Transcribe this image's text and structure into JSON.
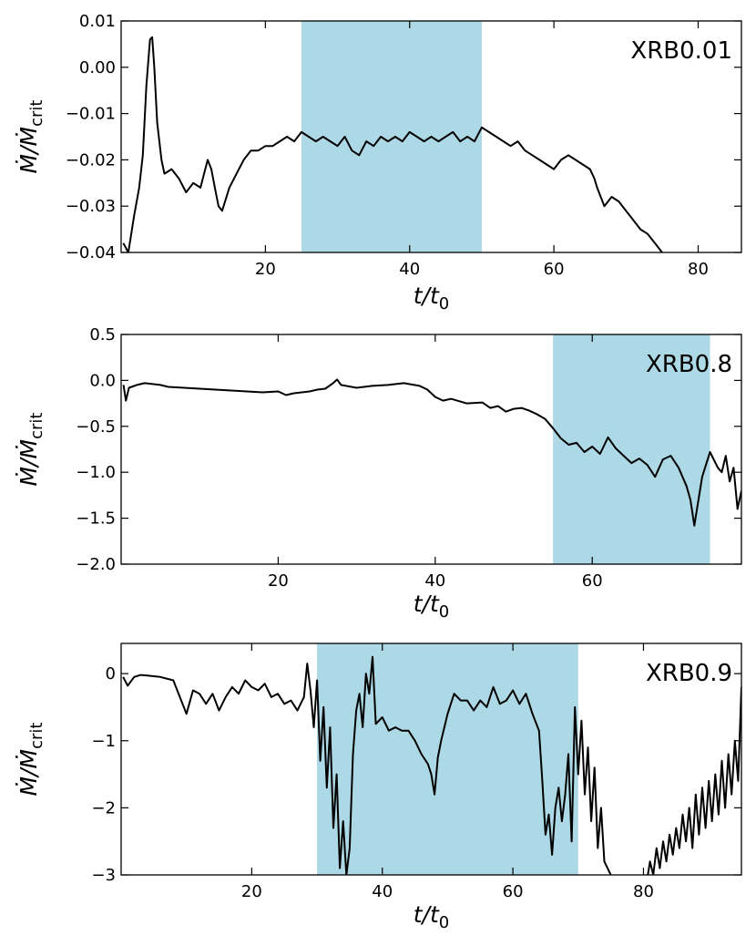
{
  "chart_data": [
    {
      "type": "line",
      "panel_label": "XRB0.01",
      "xlabel": "t/t_0",
      "ylabel": "Ṁ/Ṁ_crit",
      "xlim": [
        0,
        86
      ],
      "ylim": [
        -0.04,
        0.01
      ],
      "xticks": [
        20,
        40,
        60,
        80
      ],
      "xtick_labels": [
        "20",
        "40",
        "60",
        "80"
      ],
      "yticks": [
        -0.04,
        -0.03,
        -0.02,
        -0.01,
        0.0,
        0.01
      ],
      "ytick_labels": [
        "−0.04",
        "−0.03",
        "−0.02",
        "−0.01",
        "0.00",
        "0.01"
      ],
      "highlight": [
        25,
        50
      ],
      "highlight_color": "#add8e6",
      "line_color": "#000000",
      "series": [
        {
          "x": [
            0.3,
            1,
            1.8,
            2.5,
            3,
            3.5,
            4,
            4.3,
            4.6,
            5,
            5.6,
            6,
            7,
            8,
            9,
            10,
            11,
            12,
            12.5,
            13,
            13.5,
            14,
            15,
            16,
            17,
            18,
            19,
            20,
            21,
            22,
            23,
            24,
            25,
            26,
            27,
            28,
            29,
            30,
            31,
            32,
            33,
            34,
            35,
            36,
            37,
            38,
            39,
            40,
            41,
            42,
            43,
            44,
            45,
            46,
            47,
            48,
            49,
            50,
            51,
            52,
            53,
            54,
            55,
            56,
            57,
            58,
            59,
            60,
            61,
            62,
            63,
            64,
            65,
            65.6,
            66,
            67,
            68,
            69,
            70,
            71,
            72,
            73,
            74,
            75
          ],
          "y": [
            -0.038,
            -0.04,
            -0.032,
            -0.026,
            -0.019,
            -0.004,
            0.006,
            0.0065,
            0.0,
            -0.012,
            -0.02,
            -0.023,
            -0.022,
            -0.024,
            -0.027,
            -0.025,
            -0.026,
            -0.02,
            -0.022,
            -0.026,
            -0.03,
            -0.031,
            -0.026,
            -0.023,
            -0.02,
            -0.018,
            -0.018,
            -0.017,
            -0.017,
            -0.016,
            -0.015,
            -0.016,
            -0.014,
            -0.015,
            -0.016,
            -0.015,
            -0.016,
            -0.017,
            -0.015,
            -0.018,
            -0.019,
            -0.016,
            -0.017,
            -0.015,
            -0.016,
            -0.015,
            -0.016,
            -0.014,
            -0.015,
            -0.016,
            -0.015,
            -0.016,
            -0.015,
            -0.014,
            -0.016,
            -0.015,
            -0.016,
            -0.013,
            -0.014,
            -0.015,
            -0.016,
            -0.017,
            -0.016,
            -0.018,
            -0.019,
            -0.02,
            -0.021,
            -0.022,
            -0.02,
            -0.019,
            -0.02,
            -0.021,
            -0.022,
            -0.024,
            -0.026,
            -0.03,
            -0.028,
            -0.029,
            -0.031,
            -0.033,
            -0.035,
            -0.036,
            -0.038,
            -0.04
          ]
        }
      ]
    },
    {
      "type": "line",
      "panel_label": "XRB0.8",
      "xlabel": "t/t_0",
      "ylabel": "Ṁ/Ṁ_crit",
      "xlim": [
        0,
        79
      ],
      "ylim": [
        -2.0,
        0.5
      ],
      "xticks": [
        20,
        40,
        60
      ],
      "xtick_labels": [
        "20",
        "40",
        "60"
      ],
      "yticks": [
        -2.0,
        -1.5,
        -1.0,
        -0.5,
        0.0,
        0.5
      ],
      "ytick_labels": [
        "−2.0",
        "−1.5",
        "−1.0",
        "−0.5",
        "0.0",
        "0.5"
      ],
      "highlight": [
        55,
        75
      ],
      "highlight_color": "#add8e6",
      "line_color": "#000000",
      "series": [
        {
          "x": [
            0.3,
            0.6,
            1,
            2,
            3,
            4,
            5,
            6,
            8,
            10,
            12,
            14,
            16,
            18,
            20,
            21,
            22,
            24,
            25,
            26,
            27,
            27.5,
            28,
            30,
            32,
            34,
            36,
            38,
            39,
            40,
            41,
            42,
            44,
            46,
            47,
            48,
            49,
            50,
            51,
            52,
            53,
            54,
            55,
            56,
            57,
            58,
            59,
            60,
            61,
            62,
            63,
            64,
            65,
            66,
            67,
            68,
            69,
            70,
            71,
            72,
            72.5,
            73,
            74,
            75,
            76,
            76.5,
            77,
            77.5,
            78,
            78.5,
            79
          ],
          "y": [
            -0.05,
            -0.22,
            -0.08,
            -0.05,
            -0.03,
            -0.04,
            -0.05,
            -0.07,
            -0.08,
            -0.09,
            -0.1,
            -0.11,
            -0.12,
            -0.13,
            -0.12,
            -0.16,
            -0.14,
            -0.12,
            -0.1,
            -0.09,
            -0.03,
            0.01,
            -0.05,
            -0.08,
            -0.06,
            -0.05,
            -0.03,
            -0.06,
            -0.1,
            -0.18,
            -0.22,
            -0.2,
            -0.25,
            -0.24,
            -0.3,
            -0.28,
            -0.34,
            -0.31,
            -0.3,
            -0.33,
            -0.37,
            -0.42,
            -0.52,
            -0.63,
            -0.7,
            -0.68,
            -0.78,
            -0.72,
            -0.8,
            -0.62,
            -0.74,
            -0.82,
            -0.9,
            -0.85,
            -0.92,
            -1.05,
            -0.86,
            -0.82,
            -0.95,
            -1.15,
            -1.3,
            -1.58,
            -1.05,
            -0.78,
            -0.95,
            -1.0,
            -0.82,
            -1.1,
            -0.95,
            -1.4,
            -1.2
          ]
        }
      ]
    },
    {
      "type": "line",
      "panel_label": "XRB0.9",
      "xlabel": "t/t_0",
      "ylabel": "Ṁ/Ṁ_crit",
      "xlim": [
        0,
        95
      ],
      "ylim": [
        -3,
        0.45
      ],
      "xticks": [
        20,
        40,
        60,
        80
      ],
      "xtick_labels": [
        "20",
        "40",
        "60",
        "80"
      ],
      "yticks": [
        -3,
        -2,
        -1,
        0
      ],
      "ytick_labels": [
        "−3",
        "−2",
        "−1",
        "0"
      ],
      "highlight": [
        30,
        70
      ],
      "highlight_color": "#add8e6",
      "line_color": "#000000",
      "series": [
        {
          "x": [
            0.3,
            1,
            2,
            3,
            4,
            6,
            8,
            9,
            10,
            11,
            12,
            13,
            14,
            15,
            16,
            17,
            18,
            19,
            20,
            21,
            22,
            23,
            24,
            25,
            26,
            27,
            28,
            28.5,
            29,
            29.5,
            30,
            30.5,
            31,
            31.5,
            32,
            32.5,
            33,
            33.5,
            34,
            34.5,
            35,
            35.5,
            36,
            36.5,
            37,
            37.5,
            38,
            38.5,
            39,
            40,
            41,
            42,
            43,
            44,
            45,
            46,
            47,
            47.5,
            48,
            48.5,
            49,
            50,
            51,
            52,
            53,
            54,
            55,
            56,
            57,
            58,
            59,
            60,
            61,
            62,
            63,
            64,
            64.5,
            65,
            65.5,
            66,
            66.5,
            67,
            67.5,
            68,
            68.5,
            69,
            69.5,
            70,
            70.5,
            71,
            71.5,
            72,
            72.5,
            73,
            73.5,
            74,
            75,
            80,
            80.5,
            81,
            81.5,
            82,
            82.5,
            83,
            83.5,
            84,
            84.5,
            85,
            85.5,
            86,
            86.5,
            87,
            87.5,
            88,
            88.5,
            89,
            89.5,
            90,
            90.5,
            91,
            91.5,
            92,
            92.5,
            93,
            93.5,
            94,
            94.5,
            95
          ],
          "y": [
            -0.05,
            -0.18,
            -0.05,
            -0.02,
            -0.03,
            -0.05,
            -0.1,
            -0.35,
            -0.6,
            -0.25,
            -0.3,
            -0.45,
            -0.3,
            -0.55,
            -0.35,
            -0.2,
            -0.3,
            -0.1,
            -0.2,
            -0.25,
            -0.15,
            -0.35,
            -0.3,
            -0.45,
            -0.4,
            -0.55,
            -0.35,
            0.15,
            -0.25,
            -0.8,
            -0.1,
            -1.3,
            -0.5,
            -1.7,
            -0.8,
            -2.3,
            -1.5,
            -2.9,
            -2.2,
            -3.0,
            -2.6,
            -1.2,
            -0.55,
            -0.3,
            -0.8,
            0.0,
            -0.3,
            0.25,
            -0.75,
            -0.65,
            -0.85,
            -0.8,
            -0.85,
            -0.85,
            -1.0,
            -1.2,
            -1.35,
            -1.5,
            -1.8,
            -1.25,
            -1.0,
            -0.6,
            -0.3,
            -0.4,
            -0.4,
            -0.55,
            -0.4,
            -0.5,
            -0.2,
            -0.45,
            -0.4,
            -0.25,
            -0.45,
            -0.3,
            -0.6,
            -0.85,
            -1.6,
            -2.4,
            -2.1,
            -2.7,
            -2.0,
            -1.7,
            -2.2,
            -1.8,
            -1.2,
            -2.5,
            -0.5,
            -1.5,
            -0.7,
            -1.8,
            -1.1,
            -2.2,
            -1.4,
            -2.6,
            -2.0,
            -2.8,
            -3.0,
            -3.2,
            -3.1,
            -2.8,
            -3.0,
            -2.6,
            -2.9,
            -2.5,
            -2.8,
            -2.4,
            -2.7,
            -2.3,
            -2.6,
            -2.1,
            -2.5,
            -2.0,
            -2.6,
            -1.8,
            -2.4,
            -1.7,
            -2.3,
            -1.6,
            -2.2,
            -1.5,
            -2.1,
            -1.3,
            -2.0,
            -1.2,
            -1.8,
            -1.0,
            -1.6,
            -0.2
          ]
        }
      ]
    }
  ]
}
